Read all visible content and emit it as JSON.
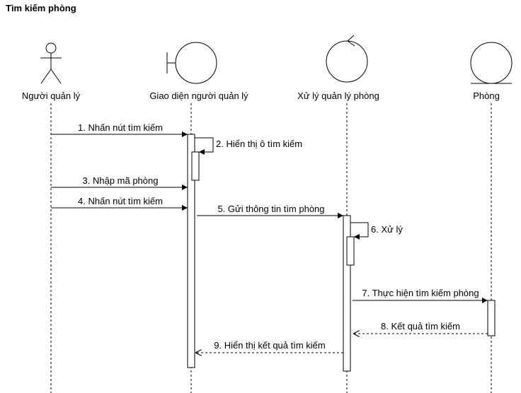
{
  "title": "Tìm kiếm phòng",
  "participants": [
    {
      "id": "actor",
      "kind": "actor",
      "label": "Người quản lý"
    },
    {
      "id": "boundary",
      "kind": "boundary",
      "label": "Giao diện người quản lý"
    },
    {
      "id": "control",
      "kind": "control",
      "label": "Xử lý quản lý phòng"
    },
    {
      "id": "entity",
      "kind": "entity",
      "label": "Phòng"
    }
  ],
  "messages": [
    {
      "label": "1. Nhấn nút tìm kiếm",
      "from": "actor",
      "to": "boundary",
      "type": "sync"
    },
    {
      "label": "2. Hiển thị ô tìm kiếm",
      "from": "boundary",
      "to": "boundary",
      "type": "self"
    },
    {
      "label": "3. Nhập mã phòng",
      "from": "actor",
      "to": "boundary",
      "type": "sync"
    },
    {
      "label": "4. Nhấn nút tìm kiếm",
      "from": "actor",
      "to": "boundary",
      "type": "sync"
    },
    {
      "label": "5. Gửi thông tin tìm phòng",
      "from": "boundary",
      "to": "control",
      "type": "sync"
    },
    {
      "label": "6. Xử lý",
      "from": "control",
      "to": "control",
      "type": "self"
    },
    {
      "label": "7. Thực hiện tìm kiếm phòng",
      "from": "control",
      "to": "entity",
      "type": "sync"
    },
    {
      "label": "8. Kết quả tìm kiếm",
      "from": "entity",
      "to": "control",
      "type": "return"
    },
    {
      "label": "9. Hiển thị kết quả tìm kiếm",
      "from": "control",
      "to": "boundary",
      "type": "return"
    }
  ]
}
